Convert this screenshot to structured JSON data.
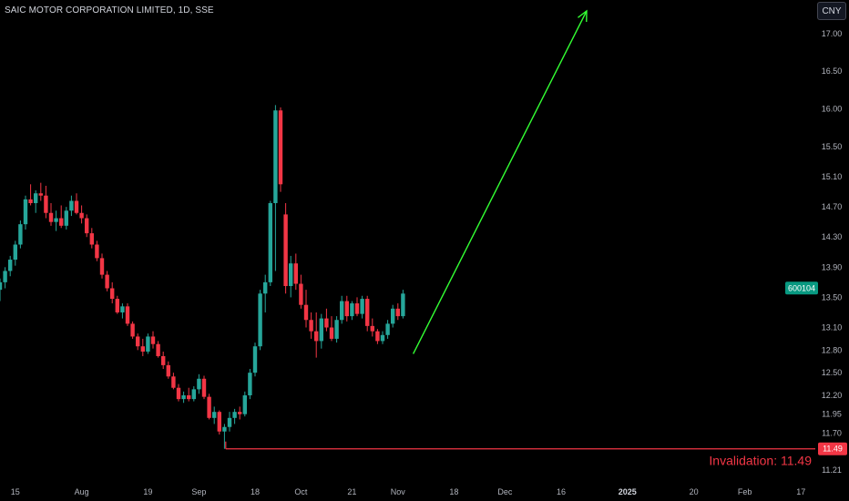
{
  "header": {
    "title": "SAIC MOTOR CORPORATION LIMITED, 1D, SSE",
    "currency": "CNY"
  },
  "colors": {
    "up": "#26a69a",
    "down": "#f23645",
    "arrow": "#33ff33",
    "invalidation": "#f23645",
    "tag": "#089981"
  },
  "chart_data": {
    "type": "candlestick",
    "symbol_tag": "600104",
    "last_price": 13.55,
    "ylim": [
      11.1,
      17.3
    ],
    "y_ticks": [
      11.21,
      11.49,
      11.7,
      11.95,
      12.2,
      12.5,
      12.8,
      13.1,
      13.5,
      13.9,
      14.3,
      14.7,
      15.1,
      15.5,
      16.0,
      16.5,
      17.0
    ],
    "x_ticks": [
      {
        "label": "15",
        "i": 3
      },
      {
        "label": "Aug",
        "i": 16
      },
      {
        "label": "19",
        "i": 29
      },
      {
        "label": "Sep",
        "i": 39
      },
      {
        "label": "18",
        "i": 50
      },
      {
        "label": "Oct",
        "i": 59
      },
      {
        "label": "21",
        "i": 69
      },
      {
        "label": "Nov",
        "i": 78
      },
      {
        "label": "18",
        "i": 89
      },
      {
        "label": "Dec",
        "i": 99
      },
      {
        "label": "16",
        "i": 110
      },
      {
        "label": "2025",
        "i": 123,
        "bold": true
      },
      {
        "label": "20",
        "i": 136
      },
      {
        "label": "Feb",
        "i": 146
      },
      {
        "label": "17",
        "i": 157
      }
    ],
    "candles": [
      [
        13.6,
        13.75,
        13.45,
        13.7
      ],
      [
        13.7,
        13.9,
        13.62,
        13.85
      ],
      [
        13.85,
        14.05,
        13.78,
        14.0
      ],
      [
        14.0,
        14.25,
        13.92,
        14.2
      ],
      [
        14.2,
        14.52,
        14.15,
        14.47
      ],
      [
        14.47,
        14.85,
        14.4,
        14.8
      ],
      [
        14.8,
        15.0,
        14.72,
        14.75
      ],
      [
        14.75,
        14.92,
        14.62,
        14.88
      ],
      [
        14.88,
        15.02,
        14.78,
        14.85
      ],
      [
        14.85,
        14.98,
        14.55,
        14.62
      ],
      [
        14.62,
        14.75,
        14.45,
        14.5
      ],
      [
        14.5,
        14.65,
        14.38,
        14.55
      ],
      [
        14.55,
        14.72,
        14.42,
        14.45
      ],
      [
        14.45,
        14.7,
        14.4,
        14.65
      ],
      [
        14.65,
        14.85,
        14.58,
        14.78
      ],
      [
        14.78,
        14.88,
        14.6,
        14.62
      ],
      [
        14.62,
        14.72,
        14.48,
        14.55
      ],
      [
        14.55,
        14.6,
        14.3,
        14.35
      ],
      [
        14.35,
        14.42,
        14.15,
        14.2
      ],
      [
        14.2,
        14.25,
        13.98,
        14.02
      ],
      [
        14.02,
        14.08,
        13.75,
        13.8
      ],
      [
        13.8,
        13.85,
        13.58,
        13.62
      ],
      [
        13.62,
        13.7,
        13.42,
        13.48
      ],
      [
        13.48,
        13.52,
        13.28,
        13.3
      ],
      [
        13.3,
        13.42,
        13.22,
        13.38
      ],
      [
        13.38,
        13.42,
        13.12,
        13.15
      ],
      [
        13.15,
        13.18,
        12.95,
        12.98
      ],
      [
        12.98,
        13.02,
        12.8,
        12.85
      ],
      [
        12.85,
        12.95,
        12.72,
        12.78
      ],
      [
        12.78,
        13.02,
        12.75,
        12.98
      ],
      [
        12.98,
        13.05,
        12.82,
        12.88
      ],
      [
        12.88,
        12.92,
        12.7,
        12.72
      ],
      [
        12.72,
        12.78,
        12.55,
        12.6
      ],
      [
        12.6,
        12.65,
        12.42,
        12.45
      ],
      [
        12.45,
        12.5,
        12.28,
        12.3
      ],
      [
        12.3,
        12.35,
        12.12,
        12.15
      ],
      [
        12.15,
        12.25,
        12.1,
        12.2
      ],
      [
        12.2,
        12.3,
        12.12,
        12.15
      ],
      [
        12.15,
        12.32,
        12.12,
        12.28
      ],
      [
        12.28,
        12.48,
        12.22,
        12.42
      ],
      [
        12.42,
        12.46,
        12.15,
        12.18
      ],
      [
        12.18,
        12.22,
        11.88,
        11.9
      ],
      [
        11.9,
        12.05,
        11.82,
        11.98
      ],
      [
        11.98,
        12.0,
        11.68,
        11.72
      ],
      [
        11.72,
        11.82,
        11.49,
        11.78
      ],
      [
        11.78,
        11.98,
        11.72,
        11.9
      ],
      [
        11.9,
        12.02,
        11.82,
        11.98
      ],
      [
        11.98,
        12.05,
        11.88,
        11.95
      ],
      [
        11.95,
        12.25,
        11.92,
        12.2
      ],
      [
        12.2,
        12.55,
        12.15,
        12.5
      ],
      [
        12.5,
        12.9,
        12.45,
        12.85
      ],
      [
        12.85,
        13.6,
        12.8,
        13.55
      ],
      [
        13.55,
        13.8,
        13.3,
        13.7
      ],
      [
        13.7,
        14.78,
        13.65,
        14.75
      ],
      [
        14.75,
        16.05,
        13.85,
        15.98
      ],
      [
        15.98,
        16.02,
        14.9,
        15.0
      ],
      [
        14.6,
        14.75,
        13.55,
        13.65
      ],
      [
        13.65,
        14.05,
        13.5,
        13.95
      ],
      [
        13.95,
        14.08,
        13.6,
        13.68
      ],
      [
        13.68,
        13.8,
        13.35,
        13.4
      ],
      [
        13.4,
        13.6,
        13.1,
        13.2
      ],
      [
        13.2,
        13.3,
        12.95,
        13.05
      ],
      [
        13.05,
        13.3,
        12.7,
        12.92
      ],
      [
        12.92,
        13.28,
        12.82,
        13.22
      ],
      [
        13.22,
        13.35,
        13.05,
        13.1
      ],
      [
        13.1,
        13.25,
        12.92,
        12.95
      ],
      [
        12.95,
        13.25,
        12.9,
        13.2
      ],
      [
        13.2,
        13.52,
        13.15,
        13.45
      ],
      [
        13.45,
        13.52,
        13.18,
        13.25
      ],
      [
        13.25,
        13.45,
        13.2,
        13.42
      ],
      [
        13.42,
        13.5,
        13.25,
        13.28
      ],
      [
        13.28,
        13.52,
        13.22,
        13.48
      ],
      [
        13.48,
        13.52,
        13.05,
        13.12
      ],
      [
        13.12,
        13.22,
        12.98,
        13.05
      ],
      [
        13.05,
        13.08,
        12.88,
        12.92
      ],
      [
        12.92,
        13.05,
        12.88,
        13.0
      ],
      [
        13.0,
        13.2,
        12.95,
        13.15
      ],
      [
        13.15,
        13.4,
        13.1,
        13.35
      ],
      [
        13.35,
        13.42,
        13.2,
        13.25
      ],
      [
        13.25,
        13.6,
        13.22,
        13.55
      ]
    ],
    "projection_arrow": {
      "from": {
        "i": 81,
        "y": 12.75
      },
      "to": {
        "i": 115,
        "y": 17.3
      }
    },
    "invalidation": {
      "value": 11.49,
      "from_i": 43,
      "label": "Invalidation: 11.49",
      "tag": "11.49"
    }
  }
}
